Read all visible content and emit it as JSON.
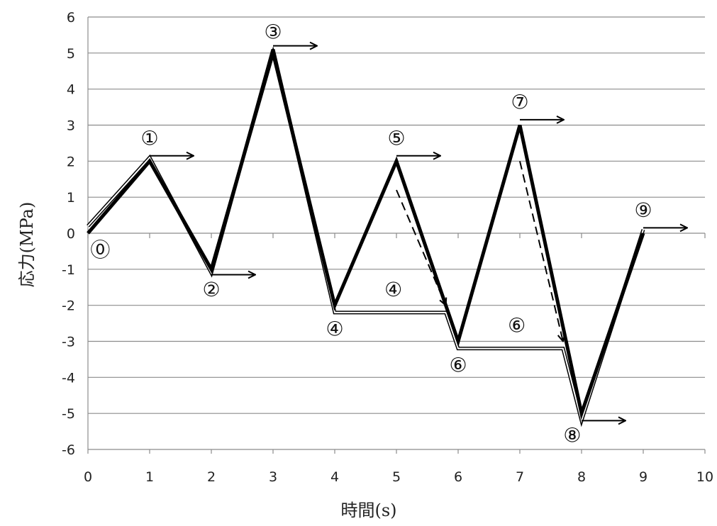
{
  "chart_data": {
    "type": "line",
    "xlabel": "時間(s)",
    "ylabel": "応力(MPa)",
    "xlim": [
      0,
      10
    ],
    "ylim": [
      -6,
      6
    ],
    "x_ticks": [
      "0",
      "1",
      "2",
      "3",
      "4",
      "5",
      "6",
      "7",
      "8",
      "9",
      "10"
    ],
    "y_ticks": [
      "6",
      "5",
      "4",
      "3",
      "2",
      "1",
      "0",
      "-1",
      "-2",
      "-3",
      "-4",
      "-5",
      "-6"
    ],
    "grid": "horizontal",
    "series": [
      {
        "style": "thick black line (stress history)",
        "x": [
          0,
          1,
          2,
          3,
          4,
          5,
          6,
          7,
          8,
          9
        ],
        "y": [
          0,
          2,
          -1,
          5,
          -2,
          2,
          -3,
          3,
          -5,
          0
        ]
      }
    ],
    "counting_path": {
      "style": "thin double outline",
      "x": [
        0,
        1,
        2,
        3,
        4,
        5.8,
        6,
        7.7,
        8,
        9
      ],
      "y": [
        0.2,
        2.1,
        -1.1,
        5.1,
        -2.2,
        -2.2,
        -3.2,
        -3.2,
        -5.2,
        0.1
      ]
    },
    "dashed_drops": [
      {
        "x": [
          5,
          5.8
        ],
        "y": [
          1.2,
          -2.0
        ]
      },
      {
        "x": [
          7,
          7.7
        ],
        "y": [
          2.0,
          -3.0
        ]
      }
    ],
    "annotations": [
      {
        "text": "⓪",
        "x": 0.2,
        "y": -0.45
      },
      {
        "text": "①",
        "x": 1.0,
        "y": 2.65
      },
      {
        "text": "②",
        "x": 2.0,
        "y": -1.55
      },
      {
        "text": "③",
        "x": 3.0,
        "y": 5.6
      },
      {
        "text": "④",
        "x": 4.0,
        "y": -2.65
      },
      {
        "text": "⑤",
        "x": 5.0,
        "y": 2.65
      },
      {
        "text": "④",
        "x": 4.95,
        "y": -1.55
      },
      {
        "text": "⑥",
        "x": 6.0,
        "y": -3.65
      },
      {
        "text": "⑦",
        "x": 7.0,
        "y": 3.65
      },
      {
        "text": "⑥",
        "x": 6.95,
        "y": -2.55
      },
      {
        "text": "⑧",
        "x": 7.85,
        "y": -5.6
      },
      {
        "text": "⑨",
        "x": 9.0,
        "y": 0.65
      }
    ],
    "arrows": [
      {
        "x": 1.0,
        "y": 2.15
      },
      {
        "x": 2.0,
        "y": -1.15
      },
      {
        "x": 3.0,
        "y": 5.2
      },
      {
        "x": 5.0,
        "y": 2.15
      },
      {
        "x": 7.0,
        "y": 3.15
      },
      {
        "x": 8.0,
        "y": -5.2
      },
      {
        "x": 9.0,
        "y": 0.15
      }
    ]
  }
}
